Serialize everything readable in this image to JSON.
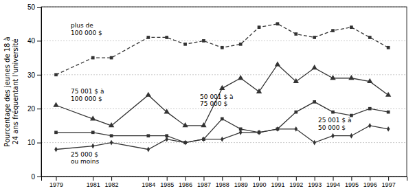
{
  "chart_data": {
    "type": "line",
    "ylabel": "Pourcentage des jeunes de 18 à 24 ans fréquentant l'université",
    "x": [
      1979,
      1981,
      1982,
      1984,
      1985,
      1986,
      1987,
      1988,
      1989,
      1990,
      1991,
      1992,
      1993,
      1994,
      1995,
      1996,
      1997
    ],
    "series": [
      {
        "values": [
          30,
          35,
          35,
          41,
          41,
          39,
          40,
          38,
          39,
          44,
          45,
          42,
          41,
          43,
          44,
          41,
          38
        ],
        "marker": "square",
        "line_style": "dashed"
      },
      {
        "values": [
          21,
          17,
          15,
          24,
          19,
          15,
          15,
          26,
          29,
          25,
          33,
          28,
          32,
          29,
          29,
          28,
          24
        ],
        "marker": "triangle",
        "line_style": "solid"
      },
      {
        "values": [
          13,
          13,
          12,
          12,
          12,
          10,
          11,
          17,
          14,
          13,
          14,
          19,
          22,
          19,
          18,
          20,
          19
        ],
        "marker": "square",
        "line_style": "solid"
      },
      {
        "values": [
          8,
          9,
          10,
          8,
          11,
          10,
          11,
          11,
          13,
          13,
          14,
          14,
          10,
          12,
          12,
          15,
          14
        ],
        "marker": "diamond",
        "line_style": "solid"
      }
    ],
    "color": "#333333",
    "xlim": [
      1978.2,
      1998.0
    ],
    "xticks": [
      1979,
      1981,
      1982,
      1984,
      1985,
      1986,
      1987,
      1988,
      1989,
      1990,
      1991,
      1992,
      1993,
      1994,
      1995,
      1996,
      1997
    ],
    "ylim": [
      0,
      50
    ],
    "yticks": [
      0,
      10,
      20,
      30,
      40,
      50
    ],
    "grid": "y",
    "annotations": [
      {
        "text": "plus de\n100 000 $",
        "x": 1979.8,
        "y": 43.5
      },
      {
        "text": "75 001 $ à\n100 000 $",
        "x": 1979.8,
        "y": 24.0
      },
      {
        "text": "50 001 $ à\n75 000 $",
        "x": 1986.8,
        "y": 22.5
      },
      {
        "text": "25 001 $ à\n50 000 $",
        "x": 1993.2,
        "y": 15.5
      },
      {
        "text": "25 000 $\nou moins",
        "x": 1979.8,
        "y": 5.5
      }
    ]
  }
}
